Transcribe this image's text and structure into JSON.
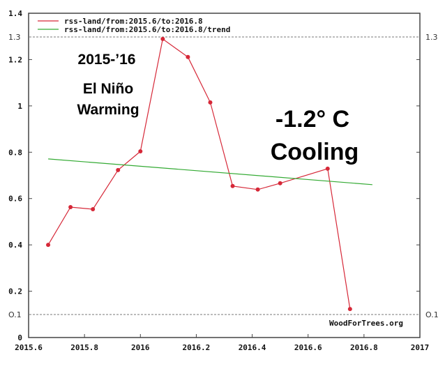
{
  "chart_data": {
    "type": "line",
    "title": "",
    "xlabel": "",
    "ylabel": "",
    "xlim": [
      2015.6,
      2017
    ],
    "ylim": [
      0,
      1.4
    ],
    "grid": false,
    "legend_position": "top-left-inside",
    "x_ticks": [
      "2015.6",
      "2015.8",
      "2016",
      "2016.2",
      "2016.4",
      "2016.6",
      "2016.8",
      "2017"
    ],
    "y_ticks": [
      "0",
      "0.2",
      "0.4",
      "0.6",
      "0.8",
      "1",
      "1.2",
      "1.4"
    ],
    "series": [
      {
        "name": "rss-land/from:2015.6/to:2016.8",
        "color": "#d62838",
        "x": [
          2015.67,
          2015.75,
          2015.83,
          2015.92,
          2016.0,
          2016.08,
          2016.17,
          2016.25,
          2016.33,
          2016.42,
          2016.5,
          2016.67,
          2016.75
        ],
        "values": [
          0.4,
          0.563,
          0.554,
          0.723,
          0.804,
          1.289,
          1.211,
          1.015,
          0.654,
          0.639,
          0.666,
          0.729,
          0.123
        ]
      },
      {
        "name": "rss-land/from:2015.6/to:2016.8/trend",
        "color": "#33aa33",
        "x": [
          2015.67,
          2016.83
        ],
        "values": [
          0.771,
          0.66
        ]
      }
    ],
    "reference_lines": [
      {
        "y": 1.3,
        "label": "1.3",
        "style": "dashed"
      },
      {
        "y": 0.1,
        "label": "0.1",
        "style": "dashed"
      }
    ],
    "annotations": [
      "2015-’16",
      "El Niño",
      "Warming",
      "-1.2° C",
      "Cooling",
      "WoodForTrees.org"
    ]
  },
  "legend": {
    "items": [
      {
        "label": "rss-land/from:2015.6/to:2016.8",
        "color": "#d62838"
      },
      {
        "label": "rss-land/from:2015.6/to:2016.8/trend",
        "color": "#33aa33"
      }
    ]
  },
  "annotations": {
    "years": "2015-’16",
    "el_nino": "El Niño",
    "warming": "Warming",
    "cooling_value": "-1.2° C",
    "cooling": "Cooling"
  },
  "ref_labels": {
    "left_13": "1.3",
    "right_13": "1.3",
    "left_01": "O.1",
    "right_01": "O.1"
  },
  "credit": "WoodForTrees.org"
}
